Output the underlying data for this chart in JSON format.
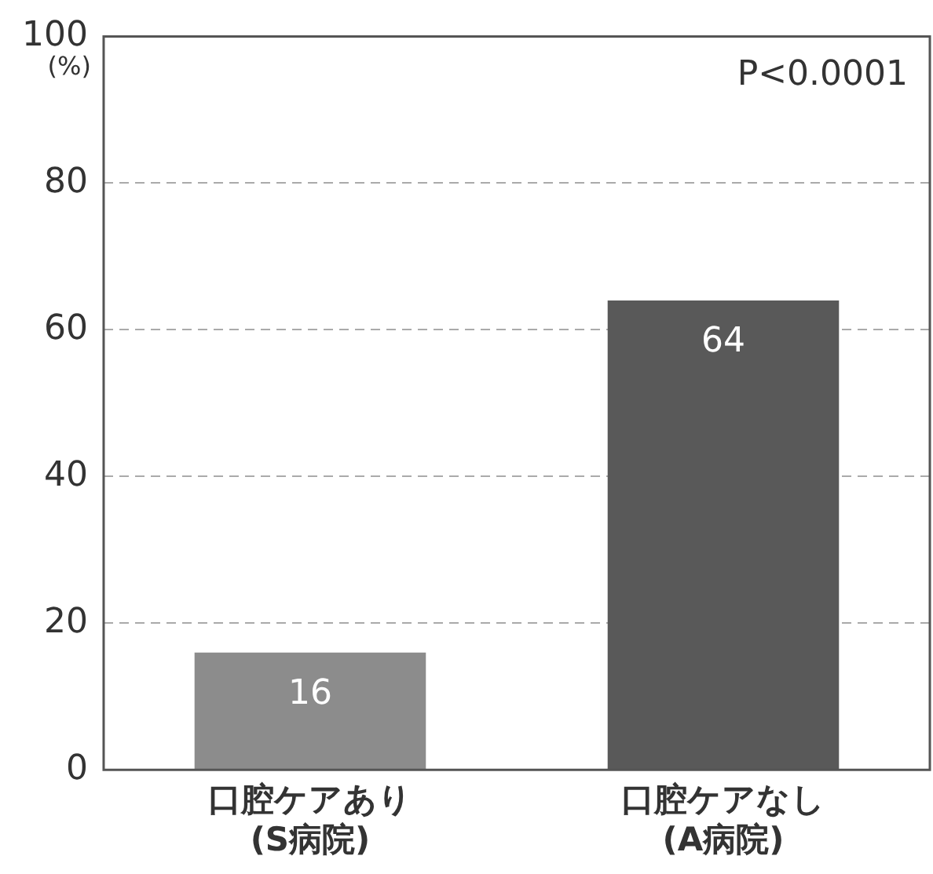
{
  "chart_data": {
    "type": "bar",
    "ylabel": "(%)",
    "categories": [
      "口腔ケアあり\n(S病院)",
      "口腔ケアなし\n(A病院)"
    ],
    "values": [
      16,
      64
    ],
    "colors": [
      "#8c8c8c",
      "#595959"
    ],
    "ylim": [
      0,
      100
    ],
    "yticks": [
      0,
      20,
      40,
      60,
      80,
      100
    ],
    "grid": "y",
    "legend": false,
    "data_labels": true,
    "annotations": [
      "P<0.0001"
    ]
  }
}
